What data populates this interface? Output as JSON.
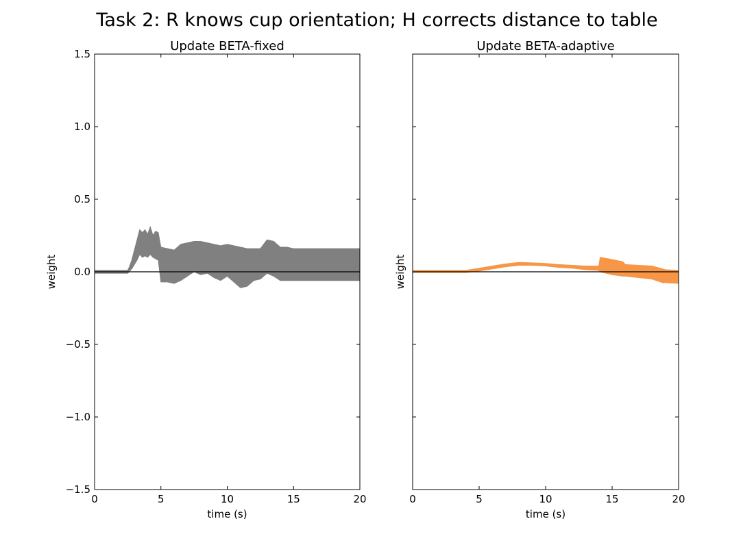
{
  "figure": {
    "title": "Task 2: R knows cup orientation; H corrects distance to table"
  },
  "chart_data": [
    {
      "type": "area",
      "title": "Update BETA-fixed",
      "xlabel": "time (s)",
      "ylabel": "weight",
      "xlim": [
        0,
        20
      ],
      "ylim": [
        -1.5,
        1.5
      ],
      "xticks": [
        "0",
        "5",
        "10",
        "15",
        "20"
      ],
      "yticks": [
        "1.5",
        "1.0",
        "0.5",
        "0.0",
        "−0.5",
        "−1.0",
        "−1.5"
      ],
      "show_yticklabels": true,
      "color": "#808080",
      "reference_line_y": 0,
      "series": [
        {
          "x": [
            0,
            2.5,
            2.6,
            2.8,
            3.0,
            3.2,
            3.4,
            3.6,
            3.8,
            4.0,
            4.2,
            4.4,
            4.6,
            4.8,
            5.0,
            5.5,
            6.0,
            6.5,
            7.0,
            7.5,
            8.0,
            8.5,
            9.0,
            9.5,
            10.0,
            10.5,
            11.0,
            11.5,
            12.0,
            12.5,
            13.0,
            13.5,
            14.0,
            14.5,
            15.0,
            20.0
          ],
          "upper": [
            0.01,
            0.01,
            0.03,
            0.08,
            0.15,
            0.22,
            0.29,
            0.27,
            0.29,
            0.26,
            0.31,
            0.25,
            0.28,
            0.27,
            0.17,
            0.16,
            0.15,
            0.19,
            0.2,
            0.21,
            0.21,
            0.2,
            0.19,
            0.18,
            0.19,
            0.18,
            0.17,
            0.16,
            0.16,
            0.16,
            0.22,
            0.21,
            0.17,
            0.17,
            0.16,
            0.16
          ],
          "lower": [
            -0.01,
            -0.01,
            0.0,
            0.02,
            0.05,
            0.08,
            0.12,
            0.1,
            0.11,
            0.1,
            0.12,
            0.1,
            0.09,
            0.08,
            -0.07,
            -0.07,
            -0.08,
            -0.06,
            -0.03,
            0.0,
            -0.02,
            -0.01,
            -0.04,
            -0.06,
            -0.03,
            -0.07,
            -0.11,
            -0.1,
            -0.06,
            -0.05,
            -0.01,
            -0.03,
            -0.06,
            -0.06,
            -0.06,
            -0.06
          ]
        }
      ]
    },
    {
      "type": "area",
      "title": "Update BETA-adaptive",
      "xlabel": "time (s)",
      "ylabel": "weight",
      "xlim": [
        0,
        20
      ],
      "ylim": [
        -1.5,
        1.5
      ],
      "xticks": [
        "0",
        "5",
        "10",
        "15",
        "20"
      ],
      "show_yticklabels": false,
      "color": "#f79646",
      "reference_line_y": 0,
      "series": [
        {
          "x": [
            0,
            2.0,
            4.0,
            5.0,
            6.0,
            7.0,
            8.0,
            9.0,
            10.0,
            11.0,
            12.0,
            13.0,
            14.0,
            14.1,
            15.0,
            15.8,
            16.0,
            17.0,
            18.0,
            18.8,
            19.0,
            20.0
          ],
          "upper": [
            0.01,
            0.01,
            0.01,
            0.025,
            0.04,
            0.055,
            0.065,
            0.062,
            0.058,
            0.05,
            0.045,
            0.04,
            0.04,
            0.1,
            0.085,
            0.07,
            0.05,
            0.045,
            0.04,
            0.02,
            0.015,
            0.01
          ],
          "lower": [
            -0.005,
            -0.005,
            -0.005,
            0.005,
            0.02,
            0.035,
            0.045,
            0.045,
            0.04,
            0.03,
            0.025,
            0.015,
            0.01,
            0.0,
            -0.02,
            -0.03,
            -0.03,
            -0.04,
            -0.05,
            -0.075,
            -0.075,
            -0.08
          ]
        }
      ]
    }
  ]
}
